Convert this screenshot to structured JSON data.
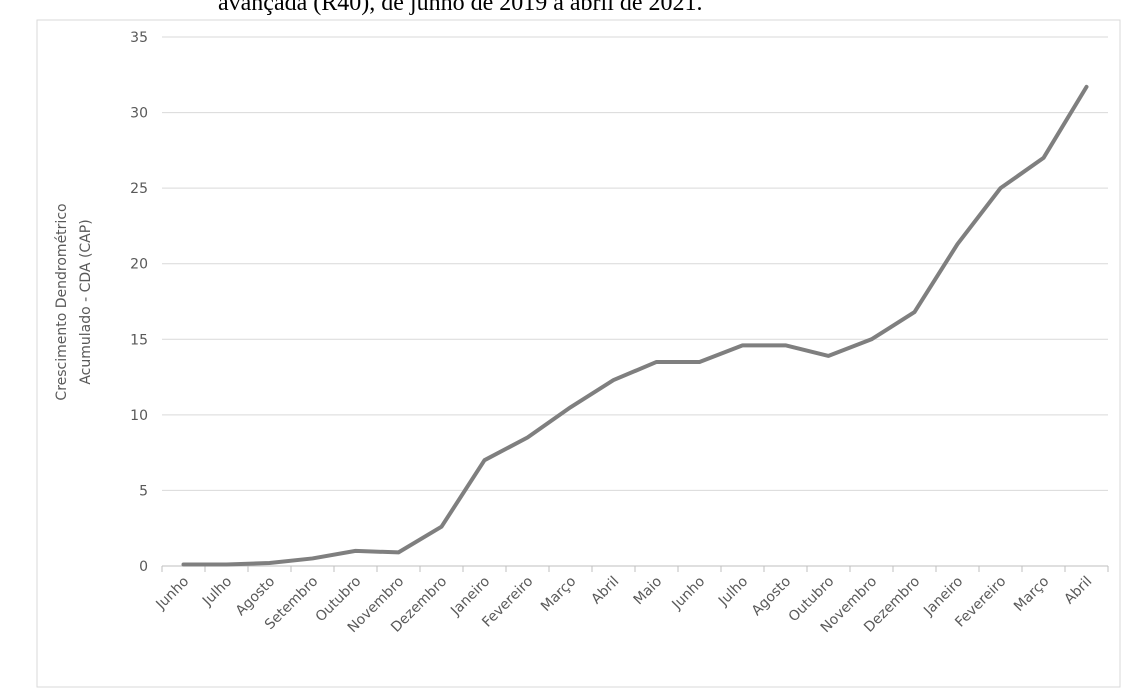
{
  "caption": "avançada (R40), de junho de 2019 a abril de 2021.",
  "chart_data": {
    "type": "line",
    "y_label": [
      "Crescimento Dendrométrico",
      "Acumulado - CDA (CAP)"
    ],
    "categories": [
      "Junho",
      "Julho",
      "Agosto",
      "Setembro",
      "Outubro",
      "Novembro",
      "Dezembro",
      "Janeiro",
      "Fevereiro",
      "Março",
      "Abril",
      "Maio",
      "Junho",
      "Julho",
      "Agosto",
      "Outubro",
      "Novembro",
      "Dezembro",
      "Janeiro",
      "Fevereiro",
      "Março",
      "Abril"
    ],
    "values": [
      0.1,
      0.1,
      0.2,
      0.5,
      1.0,
      0.9,
      2.6,
      7.0,
      8.5,
      10.5,
      12.3,
      13.5,
      13.5,
      14.6,
      14.6,
      13.9,
      15.0,
      16.8,
      21.3,
      25.0,
      27.0,
      31.7
    ],
    "color": "#7f7f7f",
    "ylim": [
      0,
      35
    ],
    "yticks": [
      0,
      5,
      10,
      15,
      20,
      25,
      30,
      35
    ],
    "grid": true
  }
}
